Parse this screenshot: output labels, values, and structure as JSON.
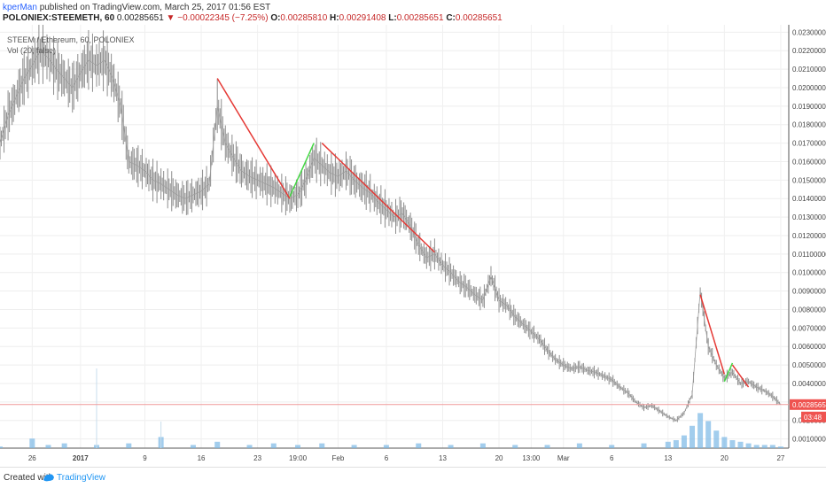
{
  "header": {
    "user": "kperMan",
    "published": "published on TradingView.com, March 25, 2017 01:56 EST"
  },
  "ohlc": {
    "symbol": "POLONIEX:STEEMETH, 60",
    "last": "0.00285651",
    "change": "▼ −0.00022345 (−7.25%)",
    "o_label": "O:",
    "o": "0.00285810",
    "h_label": "H:",
    "h": "0.00291408",
    "l_label": "L:",
    "l": "0.00285651",
    "c_label": "C:",
    "c": "0.00285651"
  },
  "overlay": {
    "title": "STEEM / Ethereum, 60, POLONIEX",
    "volume": "Vol (20, false)"
  },
  "footer": {
    "created": "Created with",
    "brand": "TradingView"
  },
  "colors": {
    "candle": "#8d8d8d",
    "red_line": "#e53935",
    "green_line": "#43d843",
    "volume": "#7ab8e6",
    "price_line": "#ef9a9a",
    "price_tag": "#ef5350"
  },
  "chart_data": {
    "type": "line",
    "title": "STEEM / Ethereum, 60, POLONIEX",
    "ylim": [
      0.0005,
      0.0234
    ],
    "y_ticks": [
      "0.02300000",
      "0.02200000",
      "0.02100000",
      "0.02000000",
      "0.01900000",
      "0.01800000",
      "0.01700000",
      "0.01600000",
      "0.01500000",
      "0.01400000",
      "0.01300000",
      "0.01200000",
      "0.01100000",
      "0.01000000",
      "0.00900000",
      "0.00800000",
      "0.00700000",
      "0.00600000",
      "0.00500000",
      "0.00400000",
      "0.00300000",
      "0.00200000",
      "0.00100000"
    ],
    "y_tick_values": [
      0.023,
      0.022,
      0.021,
      0.02,
      0.019,
      0.018,
      0.017,
      0.016,
      0.015,
      0.014,
      0.013,
      0.012,
      0.011,
      0.01,
      0.009,
      0.008,
      0.007,
      0.006,
      0.005,
      0.004,
      0.003,
      0.002,
      0.001
    ],
    "x_ticks": [
      "26",
      "2017",
      "9",
      "16",
      "23",
      "19:00",
      "Feb",
      "6",
      "13",
      "20",
      "13:00",
      "Mar",
      "6",
      "13",
      "20",
      "27"
    ],
    "x_tick_days": [
      0,
      6,
      14,
      21,
      28,
      33,
      38,
      44,
      51,
      58,
      62,
      66,
      72,
      79,
      86,
      93
    ],
    "x_range_days": [
      -4,
      94
    ],
    "price": [
      [
        -4,
        0.017
      ],
      [
        -3,
        0.0185
      ],
      [
        -2,
        0.0195
      ],
      [
        -1,
        0.0205
      ],
      [
        0,
        0.0212
      ],
      [
        1,
        0.022
      ],
      [
        2,
        0.0216
      ],
      [
        3,
        0.021
      ],
      [
        4,
        0.0205
      ],
      [
        5,
        0.02
      ],
      [
        6,
        0.0208
      ],
      [
        7,
        0.0215
      ],
      [
        8,
        0.0212
      ],
      [
        9,
        0.0215
      ],
      [
        10,
        0.0205
      ],
      [
        11,
        0.019
      ],
      [
        12,
        0.016
      ],
      [
        13,
        0.0158
      ],
      [
        14,
        0.0155
      ],
      [
        15,
        0.015
      ],
      [
        16,
        0.0148
      ],
      [
        17,
        0.0145
      ],
      [
        18,
        0.0142
      ],
      [
        19,
        0.014
      ],
      [
        20,
        0.0142
      ],
      [
        21,
        0.0144
      ],
      [
        22,
        0.0148
      ],
      [
        23,
        0.019
      ],
      [
        24,
        0.017
      ],
      [
        25,
        0.0162
      ],
      [
        26,
        0.0155
      ],
      [
        27,
        0.0152
      ],
      [
        28,
        0.015
      ],
      [
        29,
        0.0148
      ],
      [
        30,
        0.0146
      ],
      [
        31,
        0.0143
      ],
      [
        32,
        0.014
      ],
      [
        33,
        0.0142
      ],
      [
        34,
        0.015
      ],
      [
        35,
        0.0162
      ],
      [
        36,
        0.0158
      ],
      [
        37,
        0.0154
      ],
      [
        38,
        0.0152
      ],
      [
        39,
        0.0155
      ],
      [
        40,
        0.015
      ],
      [
        41,
        0.0146
      ],
      [
        42,
        0.0143
      ],
      [
        43,
        0.0138
      ],
      [
        44,
        0.0134
      ],
      [
        45,
        0.013
      ],
      [
        46,
        0.0132
      ],
      [
        47,
        0.0125
      ],
      [
        48,
        0.0115
      ],
      [
        49,
        0.0108
      ],
      [
        50,
        0.011
      ],
      [
        51,
        0.0104
      ],
      [
        52,
        0.01
      ],
      [
        53,
        0.0095
      ],
      [
        54,
        0.0092
      ],
      [
        55,
        0.0088
      ],
      [
        56,
        0.0085
      ],
      [
        57,
        0.0098
      ],
      [
        58,
        0.0085
      ],
      [
        59,
        0.0082
      ],
      [
        60,
        0.0076
      ],
      [
        61,
        0.0072
      ],
      [
        62,
        0.0068
      ],
      [
        63,
        0.0064
      ],
      [
        64,
        0.0058
      ],
      [
        65,
        0.0053
      ],
      [
        66,
        0.005
      ],
      [
        67,
        0.0048
      ],
      [
        68,
        0.0049
      ],
      [
        69,
        0.0047
      ],
      [
        70,
        0.0046
      ],
      [
        71,
        0.0044
      ],
      [
        72,
        0.0042
      ],
      [
        73,
        0.0038
      ],
      [
        74,
        0.0035
      ],
      [
        75,
        0.003
      ],
      [
        76,
        0.0027
      ],
      [
        77,
        0.0028
      ],
      [
        78,
        0.0025
      ],
      [
        79,
        0.0022
      ],
      [
        80,
        0.002
      ],
      [
        81,
        0.0024
      ],
      [
        82,
        0.0034
      ],
      [
        83,
        0.009
      ],
      [
        84,
        0.006
      ],
      [
        85,
        0.005
      ],
      [
        86,
        0.0043
      ],
      [
        87,
        0.0046
      ],
      [
        88,
        0.004
      ],
      [
        89,
        0.0041
      ],
      [
        90,
        0.0038
      ],
      [
        91,
        0.0036
      ],
      [
        92,
        0.0033
      ],
      [
        93,
        0.00286
      ]
    ],
    "volume": [
      [
        -4,
        1
      ],
      [
        0,
        6
      ],
      [
        2,
        2
      ],
      [
        4,
        3
      ],
      [
        8,
        2
      ],
      [
        12,
        3
      ],
      [
        16,
        7
      ],
      [
        20,
        2
      ],
      [
        23,
        4
      ],
      [
        27,
        2
      ],
      [
        30,
        3
      ],
      [
        33,
        2
      ],
      [
        36,
        3
      ],
      [
        40,
        2
      ],
      [
        44,
        2
      ],
      [
        48,
        3
      ],
      [
        52,
        2
      ],
      [
        56,
        3
      ],
      [
        60,
        2
      ],
      [
        64,
        2
      ],
      [
        68,
        3
      ],
      [
        72,
        2
      ],
      [
        76,
        3
      ],
      [
        79,
        4
      ],
      [
        80,
        5
      ],
      [
        81,
        8
      ],
      [
        82,
        14
      ],
      [
        83,
        22
      ],
      [
        84,
        17
      ],
      [
        85,
        11
      ],
      [
        86,
        7
      ],
      [
        87,
        5
      ],
      [
        88,
        4
      ],
      [
        89,
        3
      ],
      [
        90,
        2
      ],
      [
        91,
        2
      ],
      [
        92,
        2
      ],
      [
        93,
        1
      ]
    ],
    "volume_spike": [
      [
        8,
        75
      ],
      [
        16,
        25
      ]
    ],
    "trendlines": [
      {
        "color": "red",
        "from": [
          23,
          0.0205
        ],
        "to": [
          32,
          0.014
        ]
      },
      {
        "color": "green",
        "from": [
          32,
          0.0141
        ],
        "to": [
          35,
          0.017
        ]
      },
      {
        "color": "red",
        "from": [
          36,
          0.017
        ],
        "to": [
          50,
          0.0111
        ]
      },
      {
        "color": "red",
        "from": [
          83,
          0.0088
        ],
        "to": [
          86,
          0.0045
        ]
      },
      {
        "color": "green",
        "from": [
          86,
          0.0041
        ],
        "to": [
          87,
          0.0051
        ]
      },
      {
        "color": "red",
        "from": [
          87,
          0.005
        ],
        "to": [
          89,
          0.0038
        ]
      }
    ],
    "last_price": 0.00285651,
    "last_price_label": "0.00285651",
    "countdown": "03:48"
  }
}
